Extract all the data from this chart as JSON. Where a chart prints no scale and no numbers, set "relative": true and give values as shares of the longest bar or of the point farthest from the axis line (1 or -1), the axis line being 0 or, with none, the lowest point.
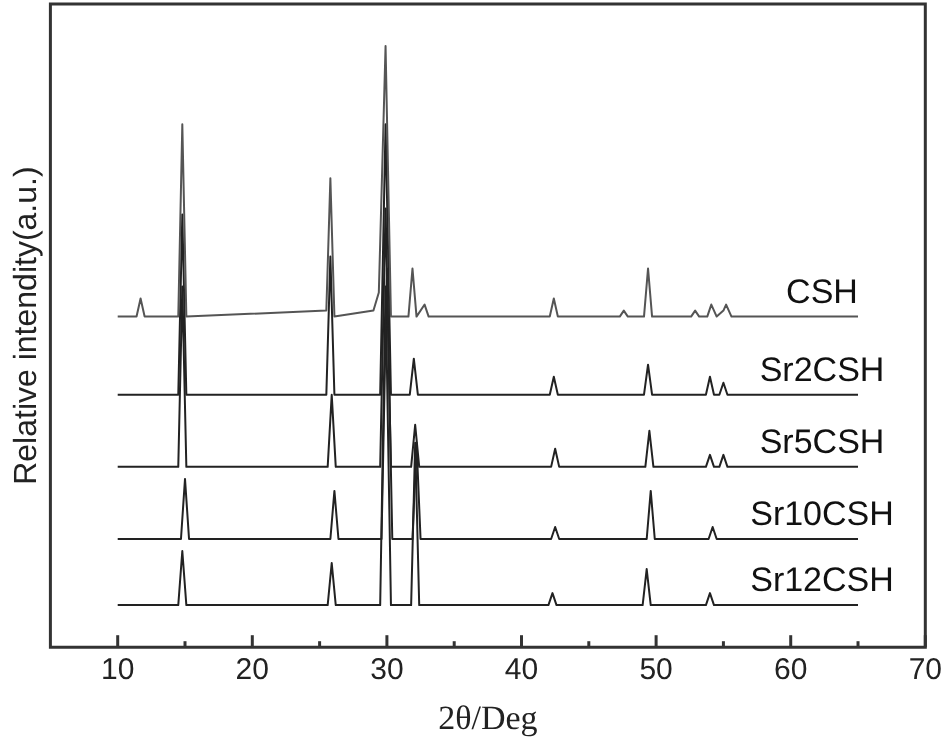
{
  "chart_data": {
    "type": "line",
    "xlabel": "2θ/Deg",
    "ylabel": "Relative intendity(a.u.)",
    "relative": true,
    "xlim": [
      5,
      70
    ],
    "xticks": [
      10,
      {
        "value": 15,
        "label": null
      },
      20,
      {
        "value": 25,
        "label": null
      },
      30,
      {
        "value": 35,
        "label": null
      },
      40,
      {
        "value": 45,
        "label": null
      },
      50,
      {
        "value": 55,
        "label": null
      },
      60,
      {
        "value": 65,
        "label": null
      },
      70
    ],
    "marker": "none",
    "line_style": "solid",
    "grid": false,
    "legend": false,
    "series": [
      {
        "name": "CSH",
        "color": "#555555",
        "x": [
          10,
          11.4,
          11.7,
          12.0,
          14.5,
          14.8,
          15.1,
          25.5,
          25.8,
          26.1,
          29.0,
          29.4,
          29.9,
          30.3,
          31.6,
          31.9,
          32.2,
          32.8,
          33.1,
          42.1,
          42.4,
          42.7,
          47.3,
          47.6,
          47.9,
          49.1,
          49.4,
          49.7,
          52.6,
          52.9,
          53.2,
          53.8,
          54.1,
          54.5,
          55.0,
          55.2,
          55.6,
          65
        ],
        "values": [
          0.55,
          0.55,
          0.58,
          0.55,
          0.55,
          0.87,
          0.55,
          0.56,
          0.78,
          0.55,
          0.56,
          0.59,
          1.0,
          0.55,
          0.55,
          0.63,
          0.55,
          0.57,
          0.55,
          0.55,
          0.58,
          0.55,
          0.55,
          0.56,
          0.55,
          0.55,
          0.63,
          0.55,
          0.55,
          0.56,
          0.55,
          0.55,
          0.57,
          0.55,
          0.56,
          0.57,
          0.55,
          0.55
        ]
      },
      {
        "name": "Sr2CSH",
        "color": "#222222",
        "x": [
          10,
          14.5,
          14.8,
          15.1,
          25.5,
          25.8,
          26.1,
          29.5,
          29.9,
          30.3,
          31.7,
          32.0,
          32.3,
          42.1,
          42.4,
          42.7,
          49.1,
          49.4,
          49.7,
          53.7,
          54.0,
          54.3,
          54.7,
          55.0,
          55.3,
          65
        ],
        "values": [
          0.42,
          0.42,
          0.72,
          0.42,
          0.42,
          0.65,
          0.42,
          0.42,
          0.87,
          0.42,
          0.42,
          0.48,
          0.42,
          0.42,
          0.45,
          0.42,
          0.42,
          0.47,
          0.42,
          0.42,
          0.45,
          0.42,
          0.42,
          0.44,
          0.42,
          0.42
        ]
      },
      {
        "name": "Sr5CSH",
        "color": "#222222",
        "x": [
          10,
          14.5,
          14.8,
          15.1,
          25.6,
          25.9,
          26.2,
          29.5,
          29.9,
          30.3,
          31.8,
          32.1,
          32.4,
          42.2,
          42.5,
          42.8,
          49.2,
          49.5,
          49.8,
          53.7,
          54.0,
          54.3,
          54.7,
          55.0,
          55.3,
          65
        ],
        "values": [
          0.3,
          0.3,
          0.6,
          0.3,
          0.3,
          0.42,
          0.3,
          0.3,
          0.73,
          0.3,
          0.3,
          0.37,
          0.3,
          0.3,
          0.33,
          0.3,
          0.3,
          0.36,
          0.3,
          0.3,
          0.32,
          0.3,
          0.3,
          0.32,
          0.3,
          0.3
        ]
      },
      {
        "name": "Sr10CSH",
        "color": "#222222",
        "x": [
          10,
          14.7,
          15.0,
          15.3,
          25.8,
          26.1,
          26.4,
          29.6,
          30.0,
          30.4,
          31.9,
          32.2,
          32.5,
          42.2,
          42.5,
          42.8,
          49.3,
          49.6,
          49.9,
          53.9,
          54.2,
          54.5,
          65
        ],
        "values": [
          0.18,
          0.18,
          0.28,
          0.18,
          0.18,
          0.26,
          0.18,
          0.18,
          0.63,
          0.18,
          0.18,
          0.34,
          0.18,
          0.18,
          0.2,
          0.18,
          0.18,
          0.26,
          0.18,
          0.18,
          0.2,
          0.18,
          0.18
        ]
      },
      {
        "name": "Sr12CSH",
        "color": "#222222",
        "x": [
          10,
          14.5,
          14.8,
          15.1,
          25.6,
          25.9,
          26.2,
          29.5,
          29.9,
          30.3,
          31.8,
          32.1,
          32.4,
          42.0,
          42.3,
          42.6,
          49.0,
          49.3,
          49.6,
          53.7,
          54.0,
          54.3,
          65
        ],
        "values": [
          0.07,
          0.07,
          0.16,
          0.07,
          0.07,
          0.14,
          0.07,
          0.07,
          0.6,
          0.07,
          0.07,
          0.34,
          0.07,
          0.07,
          0.09,
          0.07,
          0.07,
          0.13,
          0.07,
          0.07,
          0.09,
          0.07,
          0.07
        ]
      }
    ]
  }
}
